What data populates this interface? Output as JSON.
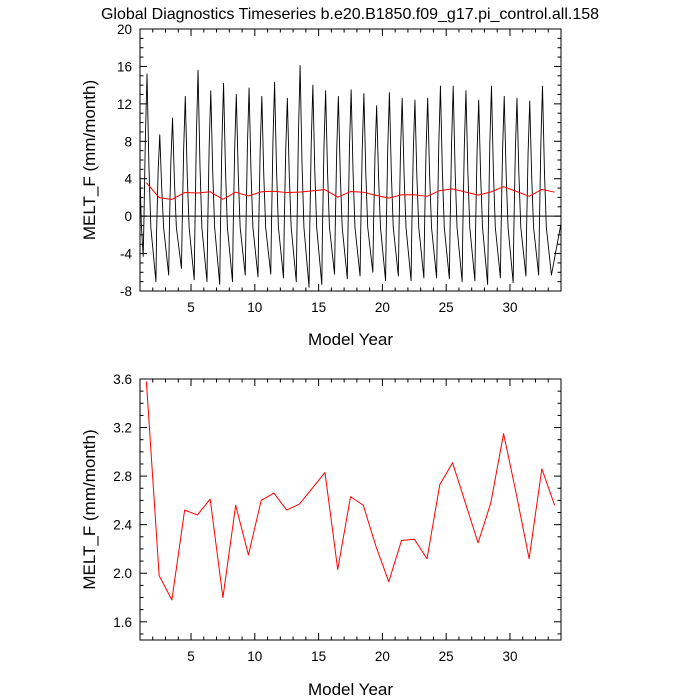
{
  "title": "Global Diagnostics Timeseries b.e20.B1850.f09_g17.pi_control.all.158",
  "colors": {
    "axis": "#000000",
    "monthly_series": "#000000",
    "annual_series": "#ff0000"
  },
  "chart_data": [
    {
      "type": "line",
      "xlabel": "Model Year",
      "ylabel": "MELT_F (mm/month)",
      "xlim": [
        1,
        34
      ],
      "ylim": [
        -8,
        20
      ],
      "xticks": [
        5,
        10,
        15,
        20,
        25,
        30
      ],
      "yticks": [
        -8,
        -4,
        0,
        4,
        8,
        12,
        16,
        20
      ],
      "zero_line": true,
      "grid": false,
      "series": [
        {
          "kind": "monthly",
          "color": "#000000",
          "peaks": [
            15.2,
            8.7,
            10.5,
            12.8,
            15.6,
            13.4,
            14.2,
            13.0,
            13.7,
            12.8,
            14.3,
            12.6,
            16.1,
            14.0,
            13.4,
            12.8,
            13.5,
            13.1,
            11.8,
            13.2,
            12.6,
            12.4,
            12.6,
            13.9,
            13.9,
            13.4,
            12.4,
            13.9,
            12.8,
            12.6,
            12.3,
            13.9
          ],
          "troughs": [
            -4.3,
            -7.0,
            -6.3,
            -5.6,
            -6.8,
            -7.0,
            -7.3,
            -7.0,
            -6.3,
            -6.5,
            -6.2,
            -6.6,
            -7.0,
            -7.6,
            -7.3,
            -6.2,
            -6.7,
            -6.4,
            -6.0,
            -6.9,
            -6.4,
            -6.9,
            -6.6,
            -6.6,
            -6.7,
            -7.0,
            -6.9,
            -7.3,
            -6.6,
            -7.1,
            -6.4,
            -6.3
          ]
        },
        {
          "kind": "annual",
          "color": "#ff0000",
          "x": [
            1.5,
            2.5,
            3.5,
            4.5,
            5.5,
            6.5,
            7.5,
            8.5,
            9.5,
            10.5,
            11.5,
            12.5,
            13.5,
            14.5,
            15.5,
            16.5,
            17.5,
            18.5,
            19.5,
            20.5,
            21.5,
            22.5,
            23.5,
            24.5,
            25.5,
            26.5,
            27.5,
            28.5,
            29.5,
            30.5,
            31.5,
            32.5,
            33.5
          ],
          "y": [
            3.58,
            1.98,
            1.78,
            2.52,
            2.48,
            2.61,
            1.8,
            2.56,
            2.15,
            2.6,
            2.66,
            2.52,
            2.57,
            2.7,
            2.83,
            2.03,
            2.63,
            2.56,
            2.22,
            1.93,
            2.27,
            2.28,
            2.12,
            2.73,
            2.91,
            2.58,
            2.25,
            2.58,
            3.15,
            2.65,
            2.12,
            2.86,
            2.56
          ]
        }
      ]
    },
    {
      "type": "line",
      "xlabel": "Model Year",
      "ylabel": "MELT_F (mm/month)",
      "xlim": [
        1,
        34
      ],
      "ylim": [
        1.45,
        3.6
      ],
      "xticks": [
        5,
        10,
        15,
        20,
        25,
        30
      ],
      "yticks": [
        1.6,
        2.0,
        2.4,
        2.8,
        3.2,
        3.6
      ],
      "ytick_labels": [
        "1.6",
        "2.0",
        "2.4",
        "2.8",
        "3.2",
        "3.6"
      ],
      "grid": false,
      "series": [
        {
          "kind": "annual",
          "color": "#ff0000",
          "x": [
            1.5,
            2.5,
            3.5,
            4.5,
            5.5,
            6.5,
            7.5,
            8.5,
            9.5,
            10.5,
            11.5,
            12.5,
            13.5,
            14.5,
            15.5,
            16.5,
            17.5,
            18.5,
            19.5,
            20.5,
            21.5,
            22.5,
            23.5,
            24.5,
            25.5,
            26.5,
            27.5,
            28.5,
            29.5,
            30.5,
            31.5,
            32.5,
            33.5
          ],
          "y": [
            3.58,
            1.98,
            1.78,
            2.52,
            2.48,
            2.61,
            1.8,
            2.56,
            2.15,
            2.6,
            2.66,
            2.52,
            2.57,
            2.7,
            2.83,
            2.03,
            2.63,
            2.56,
            2.22,
            1.93,
            2.27,
            2.28,
            2.12,
            2.73,
            2.91,
            2.58,
            2.25,
            2.58,
            3.15,
            2.65,
            2.12,
            2.86,
            2.56
          ]
        }
      ]
    }
  ]
}
